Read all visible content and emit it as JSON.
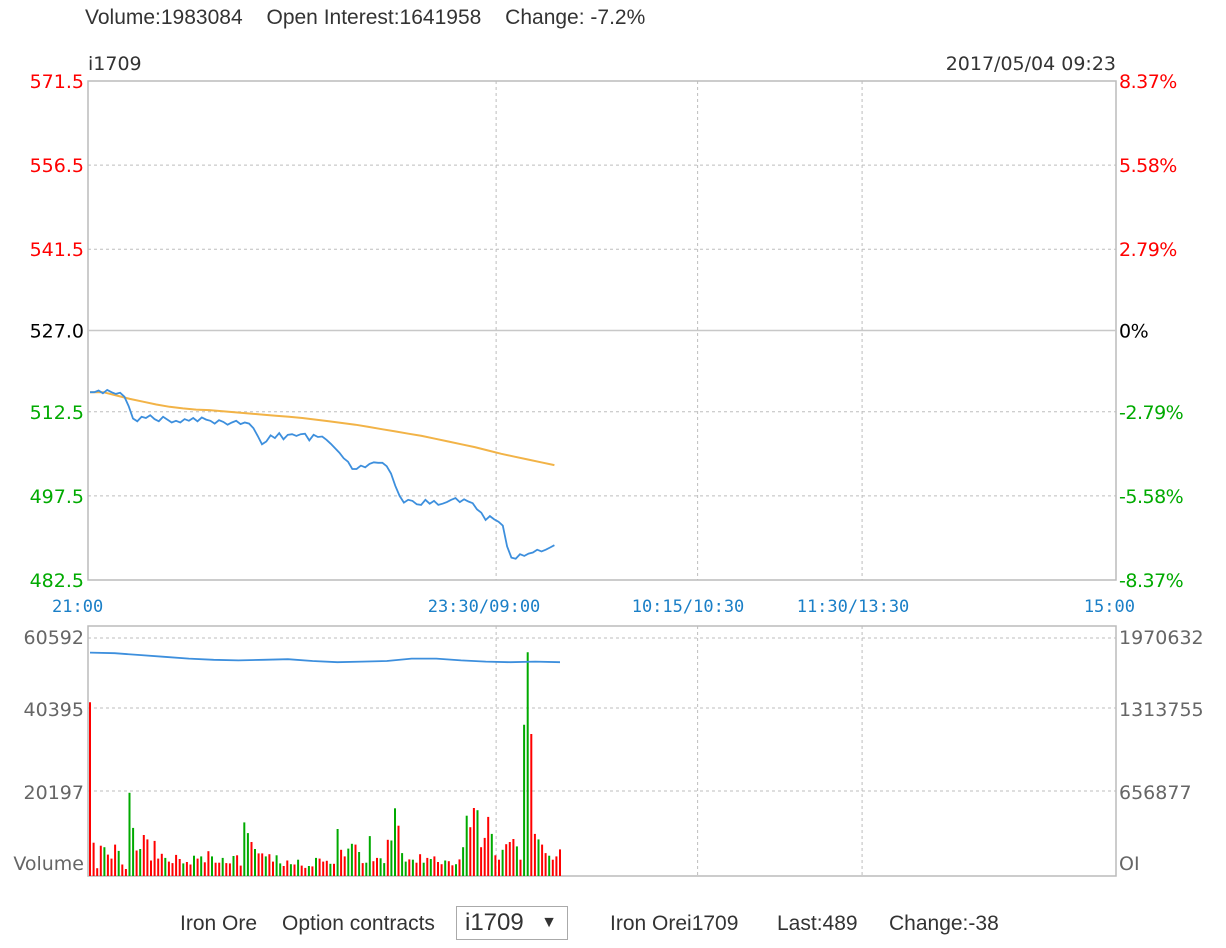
{
  "header": {
    "volume": "Volume:1983084",
    "open_interest": "Open Interest:1641958",
    "change": "Change: -7.2%"
  },
  "footer": {
    "product": "Iron Ore",
    "option_label": "Option contracts",
    "selected_contract": "i1709",
    "dropdown_arrow": "▼",
    "quote_name": "Iron Orei1709",
    "last": "Last:489",
    "change": "Change:-38"
  },
  "chart_data": [
    {
      "type": "line",
      "contract": "i1709",
      "timestamp": "2017/05/04 09:23",
      "prev_close": 527.0,
      "ylim": [
        482.5,
        571.5
      ],
      "left_ticks": [
        "571.5",
        "556.5",
        "541.5",
        "527.0",
        "512.5",
        "497.5",
        "482.5"
      ],
      "right_ticks": [
        "8.37%",
        "5.58%",
        "2.79%",
        "0%",
        "-2.79%",
        "-5.58%",
        "-8.37%"
      ],
      "x_tick_labels": [
        "21:00",
        "23:30/09:00",
        "10:15/10:30",
        "11:30/13:30",
        "15:00"
      ],
      "colors": {
        "up": "#ff0000",
        "down": "#00aa00",
        "neutral": "#000000",
        "price": "#3d8fdd",
        "average": "#f2b347",
        "time_label": "#1a7fc7"
      },
      "series": [
        {
          "values": [
            516,
            516,
            516.3,
            515.8,
            516.4,
            516,
            515.7,
            515.9,
            515.2,
            513.5,
            511.3,
            510.8,
            511.6,
            511.4,
            511.9,
            511.2,
            510.8,
            511.6,
            511.1,
            510.6,
            510.9,
            510.6,
            511.2,
            510.9,
            511.4,
            510.8,
            511.5,
            511.1,
            510.9,
            510.4,
            511,
            510.7,
            510.2,
            510.6,
            510.9,
            510.3,
            510.6,
            510.4,
            509.6,
            508.2,
            506.7,
            507.2,
            508.3,
            507.8,
            508.7,
            507.6,
            508.4,
            508.5,
            508.2,
            508.5,
            508.6,
            507.4,
            508.4,
            508,
            508.1,
            507.5,
            506.8,
            506,
            505.2,
            504.2,
            503.6,
            502.3,
            502.3,
            502.9,
            502.6,
            503.2,
            503.5,
            503.4,
            503.4,
            502.8,
            501.5,
            499.3,
            497.5,
            496.3,
            496.8,
            496.6,
            496,
            495.9,
            496.8,
            496.1,
            496.6,
            495.9,
            496.1,
            496.4,
            496.8,
            497.1,
            496.4,
            496.9,
            496.5,
            496.2,
            495.1,
            494.5,
            493.2,
            493.9,
            493.3,
            492.9,
            492.2,
            488.5,
            486.5,
            486.3,
            487.1,
            486.8,
            487.2,
            487.4,
            487.9,
            487.6,
            487.9,
            488.3,
            488.7
          ]
        },
        {
          "values": [
            516,
            516,
            515.4,
            514.8,
            514.3,
            513.8,
            513.4,
            513.1,
            512.9,
            512.8,
            512.6,
            512.4,
            512.2,
            512,
            511.8,
            511.6,
            511.4,
            511.1,
            510.8,
            510.5,
            510.2,
            509.8,
            509.4,
            509,
            508.6,
            508.2,
            507.7,
            507.2,
            506.7,
            506.2,
            505.6,
            505,
            504.5,
            504,
            503.5,
            503
          ]
        }
      ]
    },
    {
      "type": "bar",
      "left_ticks": [
        "60592",
        "40395",
        "20197",
        "Volume"
      ],
      "right_ticks": [
        "1970632",
        "1313755",
        "656877",
        "OI"
      ],
      "volume_max": 60592,
      "oi_max": 1970632,
      "series": [
        {
          "values": [
            47000,
            9000,
            2100,
            8200,
            7800,
            5800,
            4700,
            8500,
            6800,
            3100,
            1900,
            22500,
            13000,
            6900,
            7300,
            11100,
            9900,
            4200,
            9500,
            4700,
            6000,
            4900,
            3900,
            3500,
            5700,
            4600,
            3400,
            3800,
            3100,
            5500,
            4700,
            5300,
            3700,
            6700,
            5300,
            3600,
            3600,
            4900,
            3500,
            3400,
            5400,
            5600,
            2800,
            14500,
            11600,
            9200,
            7300,
            6100,
            6100,
            5300,
            5900,
            3900,
            5600,
            3400,
            2700,
            4200,
            3200,
            3100,
            4400,
            2800,
            2200,
            2700,
            2600,
            4900,
            4700,
            3900,
            4100,
            3300,
            3300,
            12700,
            7100,
            5300,
            7400,
            8700,
            8500,
            6500,
            3500,
            3600,
            10800,
            4000,
            4900,
            4800,
            3500,
            9800,
            9600,
            18300,
            13600,
            6200,
            3900,
            4500,
            4400,
            3600,
            5900,
            3600,
            4900,
            4600,
            5300,
            3800,
            3200,
            4200,
            4000,
            2900,
            3200,
            4500,
            7800,
            16300,
            13200,
            18400,
            17800,
            7800,
            10300,
            16000,
            11400,
            5600,
            4400,
            7100,
            8600,
            9200,
            10000,
            8000,
            4400,
            40900,
            60500,
            38400,
            11400,
            9900,
            8500,
            6200,
            5500,
            4400,
            5300,
            7200
          ],
          "colors": [
            "up",
            "up",
            "up",
            "up",
            "down",
            "up",
            "up",
            "up",
            "down",
            "up",
            "up",
            "down",
            "down",
            "up",
            "down",
            "up",
            "up",
            "up",
            "up",
            "up",
            "up",
            "down",
            "up",
            "up",
            "up",
            "up",
            "down",
            "up",
            "up",
            "down",
            "up",
            "down",
            "up",
            "up",
            "down",
            "up",
            "up",
            "down",
            "up",
            "up",
            "down",
            "up",
            "up",
            "down",
            "down",
            "up",
            "down",
            "up",
            "up",
            "down",
            "up",
            "up",
            "down",
            "down",
            "up",
            "up",
            "down",
            "up",
            "down",
            "up",
            "up",
            "down",
            "up",
            "down",
            "up",
            "up",
            "up",
            "down",
            "up",
            "down",
            "up",
            "up",
            "down",
            "down",
            "up",
            "down",
            "up",
            "down",
            "down",
            "up",
            "up",
            "down",
            "down",
            "up",
            "down",
            "down",
            "up",
            "down",
            "down",
            "up",
            "down",
            "up",
            "up",
            "down",
            "up",
            "down",
            "up",
            "up",
            "up",
            "down",
            "up",
            "up",
            "down",
            "up",
            "down",
            "down",
            "up",
            "up",
            "down",
            "up",
            "up",
            "up",
            "down",
            "up",
            "up",
            "down",
            "up",
            "up",
            "up",
            "down",
            "up",
            "down",
            "down",
            "up",
            "up",
            "down",
            "up",
            "up",
            "down",
            "up",
            "up",
            "up"
          ]
        },
        {
          "values": [
            1850000,
            1845000,
            1830000,
            1815000,
            1800000,
            1790000,
            1785000,
            1790000,
            1795000,
            1780000,
            1770000,
            1775000,
            1780000,
            1800000,
            1800000,
            1785000,
            1775000,
            1770000,
            1775000,
            1770000
          ]
        }
      ]
    }
  ]
}
